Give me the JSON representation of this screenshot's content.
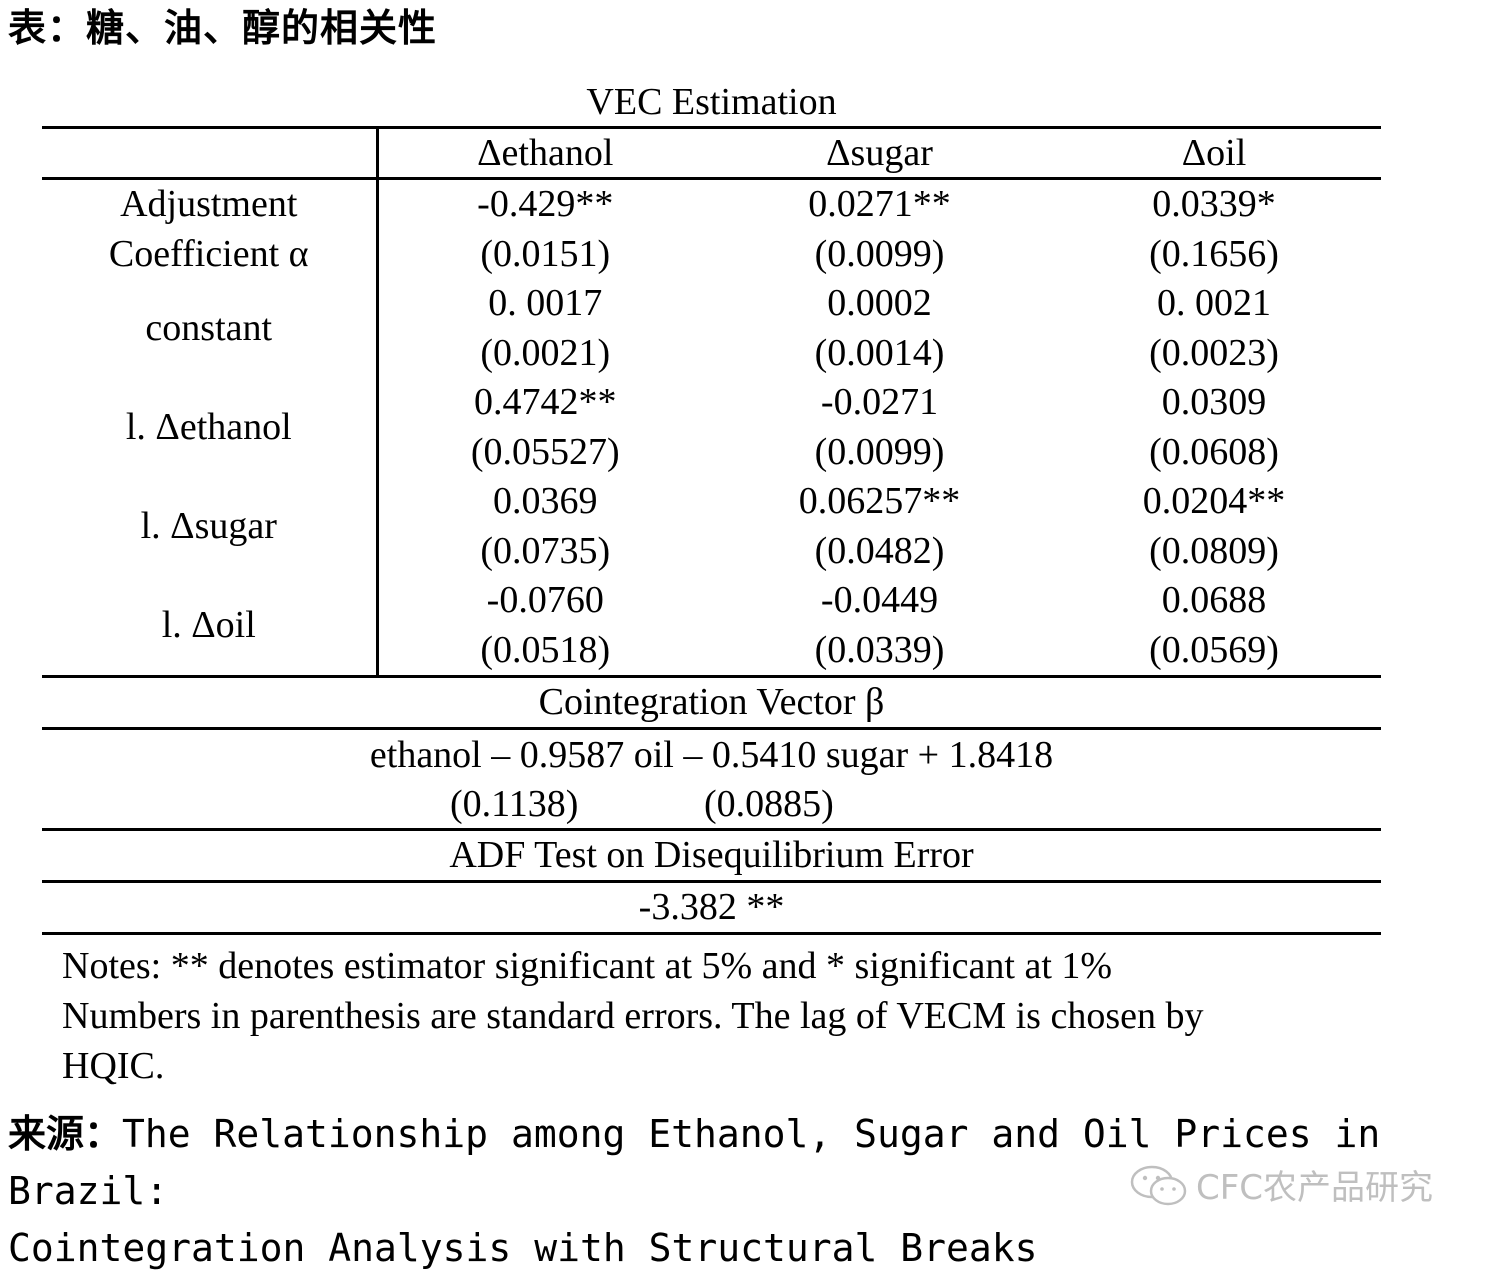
{
  "caption": "表：糖、油、醇的相关性",
  "table": {
    "title": "VEC Estimation",
    "columns": [
      "Δethanol",
      "Δsugar",
      "Δoil"
    ],
    "rows": [
      {
        "label_lines": [
          "Adjustment",
          "Coefficient α"
        ],
        "estimates": [
          "-0.429**",
          "0.0271**",
          "0.0339*"
        ],
        "std_errors": [
          "(0.0151)",
          "(0.0099)",
          "(0.1656)"
        ]
      },
      {
        "label_lines": [
          "constant"
        ],
        "estimates": [
          "0. 0017",
          "0.0002",
          "0. 0021"
        ],
        "std_errors": [
          "(0.0021)",
          "(0.0014)",
          "(0.0023)"
        ]
      },
      {
        "label_lines": [
          "l. Δethanol"
        ],
        "estimates": [
          "0.4742**",
          "-0.0271",
          "0.0309"
        ],
        "std_errors": [
          "(0.05527)",
          "(0.0099)",
          "(0.0608)"
        ]
      },
      {
        "label_lines": [
          "l. Δsugar"
        ],
        "estimates": [
          "0.0369",
          "0.06257**",
          "0.0204**"
        ],
        "std_errors": [
          "(0.0735)",
          "(0.0482)",
          "(0.0809)"
        ]
      },
      {
        "label_lines": [
          "l. Δoil"
        ],
        "estimates": [
          "-0.0760",
          "-0.0449",
          "0.0688"
        ],
        "std_errors": [
          "(0.0518)",
          "(0.0339)",
          "(0.0569)"
        ]
      }
    ],
    "cointegration_title": "Cointegration Vector β",
    "cointegration_equation": "ethanol – 0.9587 oil – 0.5410 sugar + 1.8418",
    "cointegration_se": [
      "(0.1138)",
      "(0.0885)"
    ],
    "adf_title": "ADF Test on Disequilibrium Error",
    "adf_value": "-3.382 **",
    "notes": [
      "Notes: ** denotes estimator significant at 5% and * significant at 1%",
      "Numbers in parenthesis are standard errors. The lag of VECM is chosen by",
      "HQIC."
    ]
  },
  "source": {
    "label": "来源：",
    "line1": "The Relationship among Ethanol, Sugar and Oil Prices in Brazil:",
    "line2": "Cointegration Analysis with Structural Breaks"
  },
  "watermark": {
    "icon": "wechat-icon",
    "text": "CFC农产品研究",
    "color": "#bfbfbf"
  }
}
